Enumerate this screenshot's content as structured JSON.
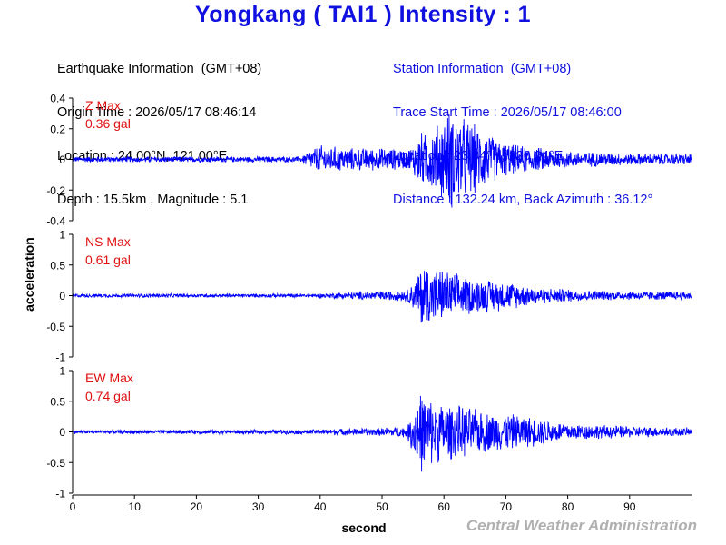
{
  "header": {
    "title": "Yongkang ( TAI1 ) Intensity : 1",
    "earthquake_info": [
      "Earthquake Information  (GMT+08)",
      "Origin Time : 2026/05/17 08:46:14",
      "Location : 24.00°N, 121.00°E",
      "Depth : 15.5km , Magnitude : 5.1"
    ],
    "station_info": [
      "Station Information  (GMT+08)",
      "Trace Start Time : 2026/05/17 08:46:00",
      "Location : 23.04°N, 120.24°E",
      "Distance : 132.24 km, Back Azimuth : 36.12°"
    ]
  },
  "footer": {
    "credit": "Central Weather Administration"
  },
  "colors": {
    "title": "#1010e0",
    "trace": "#0000ff",
    "max_label": "#e01010",
    "credit": "#b0b0b0"
  },
  "chart_data": {
    "type": "line",
    "xlabel": "second",
    "ylabel": "acceleration",
    "xlim": [
      0,
      100
    ],
    "xticks": [
      0,
      10,
      20,
      30,
      40,
      50,
      60,
      70,
      80,
      90
    ],
    "grid": false,
    "panels": [
      {
        "component": "Z",
        "label": "Z Max",
        "max_value": "0.36 gal",
        "ylim": [
          -0.4,
          0.4
        ],
        "yticks": [
          -0.4,
          -0.2,
          0,
          0.2,
          0.4
        ],
        "ytick_labels": [
          "-0.4",
          "-0.2",
          "0",
          "0.2",
          "0.4"
        ],
        "envelope": [
          [
            0,
            0.02
          ],
          [
            37,
            0.02
          ],
          [
            38,
            0.06
          ],
          [
            40,
            0.1
          ],
          [
            45,
            0.08
          ],
          [
            50,
            0.08
          ],
          [
            54,
            0.07
          ],
          [
            55,
            0.1
          ],
          [
            56,
            0.2
          ],
          [
            57,
            0.18
          ],
          [
            59,
            0.25
          ],
          [
            61,
            0.36
          ],
          [
            63,
            0.3
          ],
          [
            66,
            0.22
          ],
          [
            69,
            0.13
          ],
          [
            72,
            0.1
          ],
          [
            80,
            0.06
          ],
          [
            90,
            0.04
          ],
          [
            100,
            0.04
          ]
        ]
      },
      {
        "component": "NS",
        "label": "NS Max",
        "max_value": "0.61 gal",
        "ylim": [
          -1,
          1
        ],
        "yticks": [
          -1,
          -0.5,
          0,
          0.5,
          1
        ],
        "ytick_labels": [
          "-1",
          "-0.5",
          "0",
          "0.5",
          "1"
        ],
        "envelope": [
          [
            0,
            0.03
          ],
          [
            38,
            0.03
          ],
          [
            44,
            0.06
          ],
          [
            50,
            0.08
          ],
          [
            54,
            0.1
          ],
          [
            55.5,
            0.3
          ],
          [
            56.5,
            0.6
          ],
          [
            58,
            0.5
          ],
          [
            60,
            0.45
          ],
          [
            63,
            0.35
          ],
          [
            66,
            0.3
          ],
          [
            70,
            0.25
          ],
          [
            75,
            0.15
          ],
          [
            85,
            0.08
          ],
          [
            100,
            0.07
          ]
        ]
      },
      {
        "component": "EW",
        "label": "EW Max",
        "max_value": "0.74 gal",
        "ylim": [
          -1,
          1
        ],
        "yticks": [
          -1,
          -0.5,
          0,
          0.5,
          1
        ],
        "ytick_labels": [
          "-1",
          "-0.5",
          "0",
          "0.5",
          "1"
        ],
        "envelope": [
          [
            0,
            0.03
          ],
          [
            38,
            0.04
          ],
          [
            45,
            0.06
          ],
          [
            50,
            0.07
          ],
          [
            54,
            0.1
          ],
          [
            55,
            0.4
          ],
          [
            56,
            0.74
          ],
          [
            57.5,
            0.6
          ],
          [
            60,
            0.5
          ],
          [
            63,
            0.45
          ],
          [
            67,
            0.35
          ],
          [
            72,
            0.3
          ],
          [
            80,
            0.15
          ],
          [
            90,
            0.1
          ],
          [
            100,
            0.07
          ]
        ]
      }
    ]
  }
}
